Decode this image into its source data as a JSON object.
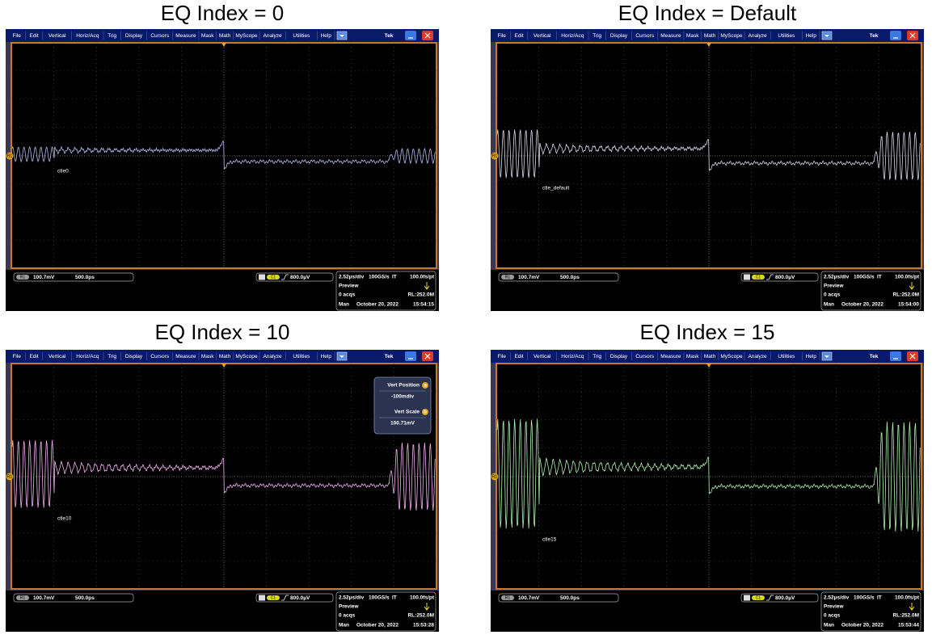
{
  "menu": [
    "File",
    "Edit",
    "Vertical",
    "Horiz/Acq",
    "Trig",
    "Display",
    "Cursors",
    "Measure",
    "Mask",
    "Math",
    "MyScope",
    "Analyze",
    "Utilities",
    "Help"
  ],
  "brand": "Tek",
  "reference": "R1",
  "ref_scale": "100.7mV",
  "ref_position": "500.0ps",
  "trigger_channel": "C1",
  "trigger_level": "800.0µV",
  "horizontal": {
    "scale": "2.52µs/div",
    "rate": "100GS/s",
    "mode": "IT",
    "resolution": "100.0fs/pt"
  },
  "preview": "Preview",
  "acqs": "0 acqs",
  "record_length": "RL:252.0M",
  "run_mode": "Man",
  "date": "October 20, 2022",
  "panels": [
    {
      "title": "EQ Index = 0",
      "trace_label": "ctle0",
      "time": "15:54:15",
      "trace_color": "#b8b8f0"
    },
    {
      "title": "EQ Index = Default",
      "trace_label": "ctle_default",
      "time": "15:54:00",
      "trace_color": "#d8d8e8"
    },
    {
      "title": "EQ Index = 10",
      "trace_label": "ctle10",
      "time": "15:53:28",
      "trace_color": "#f0b0f0",
      "popup": {
        "position_label": "Vert Position",
        "position_knob": "a",
        "position_value": "-100mdiv",
        "scale_label": "Vert Scale",
        "scale_knob": "b",
        "scale_value": "100.71mV"
      }
    },
    {
      "title": "EQ Index = 15",
      "trace_label": "ctle15",
      "time": "15:53:44",
      "trace_color": "#b0f0b0"
    }
  ]
}
